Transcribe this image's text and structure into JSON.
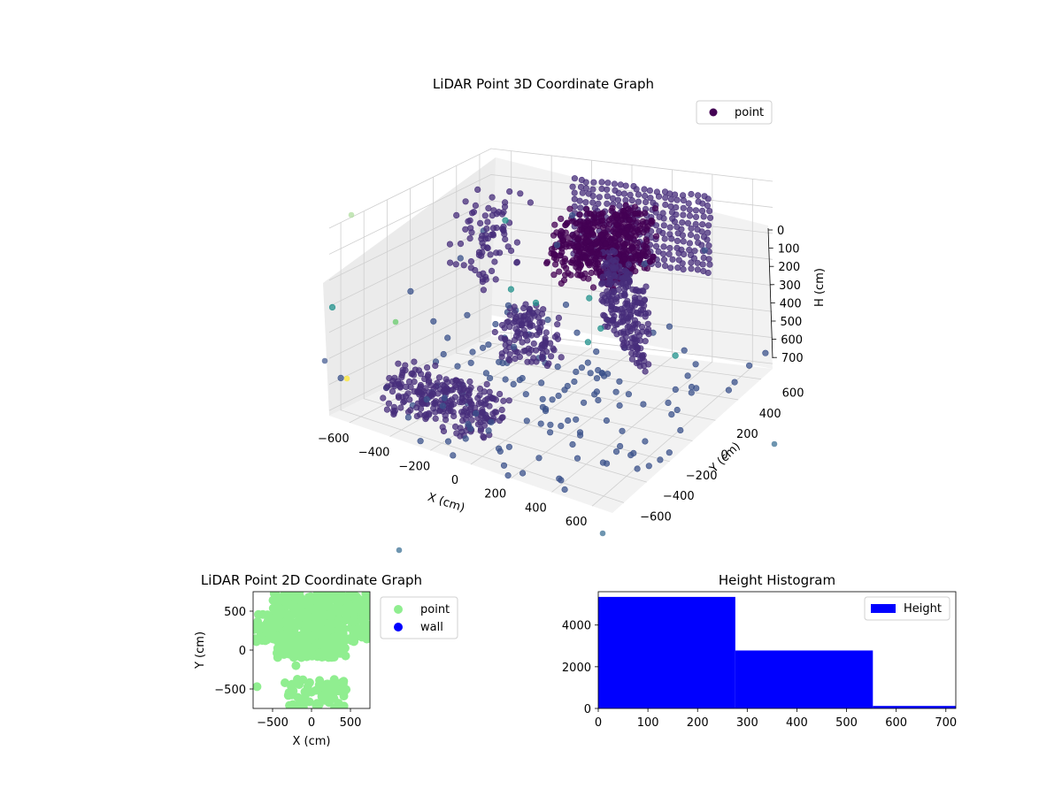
{
  "chart_data": [
    {
      "type": "scatter3d",
      "title": "LiDAR Point 3D Coordinate Graph",
      "xlabel": "X (cm)",
      "ylabel": "Y (cm)",
      "zlabel": "H (cm)",
      "x_ticks": [
        "−600",
        "−400",
        "−200",
        "0",
        "200",
        "400",
        "600"
      ],
      "y_ticks": [
        "−600",
        "−400",
        "−200",
        "0",
        "200",
        "400",
        "600"
      ],
      "z_ticks": [
        "0",
        "100",
        "200",
        "300",
        "400",
        "500",
        "600",
        "700"
      ],
      "xlim": [
        -700,
        700
      ],
      "ylim": [
        -700,
        700
      ],
      "zlim": [
        0,
        720
      ],
      "z_inverted": true,
      "grid": true,
      "legend": {
        "position": "top-right",
        "entries": [
          "point"
        ]
      },
      "colormap": "viridis",
      "colors": {
        "dense": "#440154",
        "mid": "#3b528b",
        "teal": "#21918c",
        "yellow": "#fde725"
      },
      "series": [
        {
          "name": "point",
          "note_shape": "room walls, floor and furniture point cloud"
        }
      ]
    },
    {
      "type": "scatter",
      "title": "LiDAR Point 2D Coordinate Graph",
      "xlabel": "X (cm)",
      "ylabel": "Y (cm)",
      "x_ticks": [
        "−500",
        "0",
        "500"
      ],
      "y_ticks": [
        "500",
        "0",
        "−500"
      ],
      "xlim": [
        -750,
        750
      ],
      "ylim": [
        -750,
        750
      ],
      "legend": {
        "position": "right",
        "entries": [
          "point",
          "wall"
        ]
      },
      "series": [
        {
          "name": "point",
          "color": "#90ee90"
        },
        {
          "name": "wall",
          "color": "#0000ff"
        }
      ]
    },
    {
      "type": "bar",
      "title": "Height Histogram",
      "x_ticks": [
        "0",
        "100",
        "200",
        "300",
        "400",
        "500",
        "600",
        "700"
      ],
      "y_ticks": [
        "0",
        "2000",
        "4000"
      ],
      "xlim": [
        0,
        720
      ],
      "ylim": [
        0,
        5600
      ],
      "legend": {
        "position": "top-right",
        "entries": [
          "Height"
        ]
      },
      "color": "#0000ff",
      "series": [
        {
          "name": "Height",
          "bins": [
            [
              0,
              276
            ],
            [
              276,
              553
            ],
            [
              553,
              720
            ]
          ],
          "values": [
            5350,
            2780,
            120
          ]
        }
      ]
    }
  ]
}
